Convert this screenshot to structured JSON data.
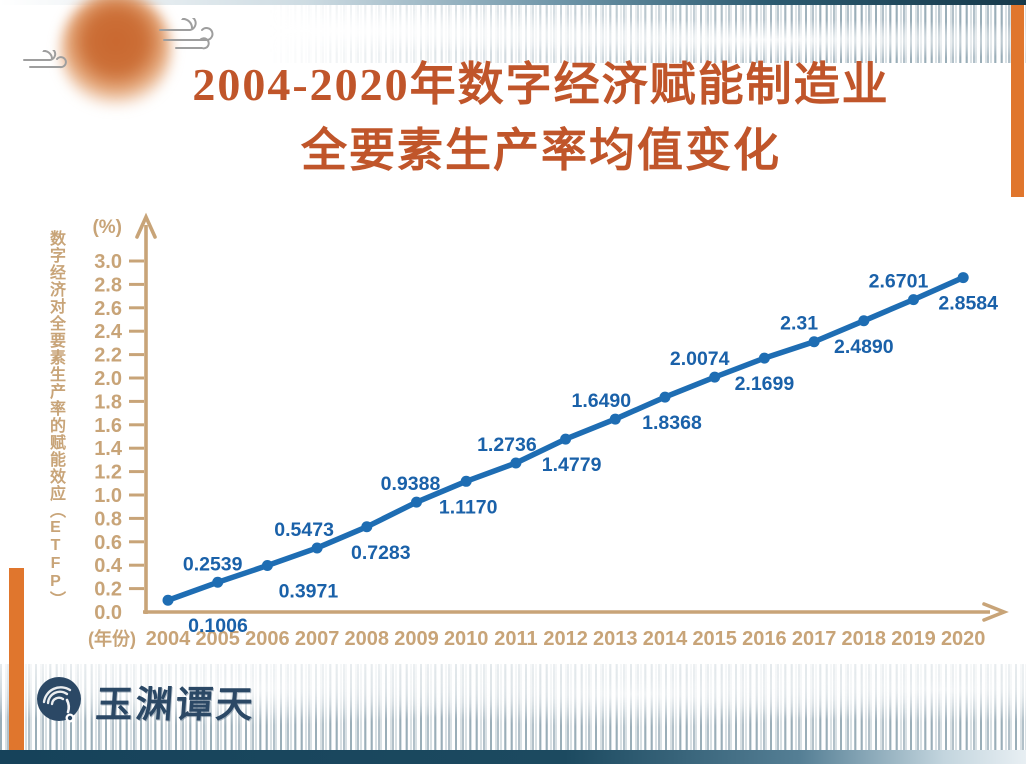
{
  "page": {
    "title_line1": "2004-2020年数字经济赋能制造业",
    "title_line2": "全要素生产率均值变化"
  },
  "chart_data": {
    "type": "line",
    "title": "2004-2020年数字经济赋能制造业全要素生产率均值变化",
    "x": [
      "2004",
      "2005",
      "2006",
      "2007",
      "2008",
      "2009",
      "2010",
      "2011",
      "2012",
      "2013",
      "2014",
      "2015",
      "2016",
      "2017",
      "2018",
      "2019",
      "2020"
    ],
    "values": [
      0.1006,
      0.2539,
      0.3971,
      0.5473,
      0.7283,
      0.9388,
      1.117,
      1.2736,
      1.4779,
      1.649,
      1.8368,
      2.0074,
      2.1699,
      2.31,
      2.489,
      2.6701,
      2.8584
    ],
    "point_labels": [
      "0.1006",
      "0.2539",
      "0.3971",
      "0.5473",
      "0.7283",
      "0.9388",
      "1.1170",
      "1.2736",
      "1.4779",
      "1.6490",
      "1.8368",
      "2.0074",
      "2.1699",
      "2.31",
      "2.4890",
      "2.6701",
      "2.8584"
    ],
    "xlabel": "(年份)",
    "ylabel": "数字经济对全要素生产率的赋能效应（ETFP）",
    "y_unit": "(%)",
    "ylim": [
      0.0,
      3.0
    ],
    "y_tick_step": 0.2,
    "grid": false,
    "legend": "none",
    "colors": {
      "line": "#1e6db3",
      "point_label": "#1a61a9",
      "axis": "#c8a478",
      "title": "#c0552a"
    }
  },
  "branding": {
    "logo_text": "玉渊谭天"
  }
}
